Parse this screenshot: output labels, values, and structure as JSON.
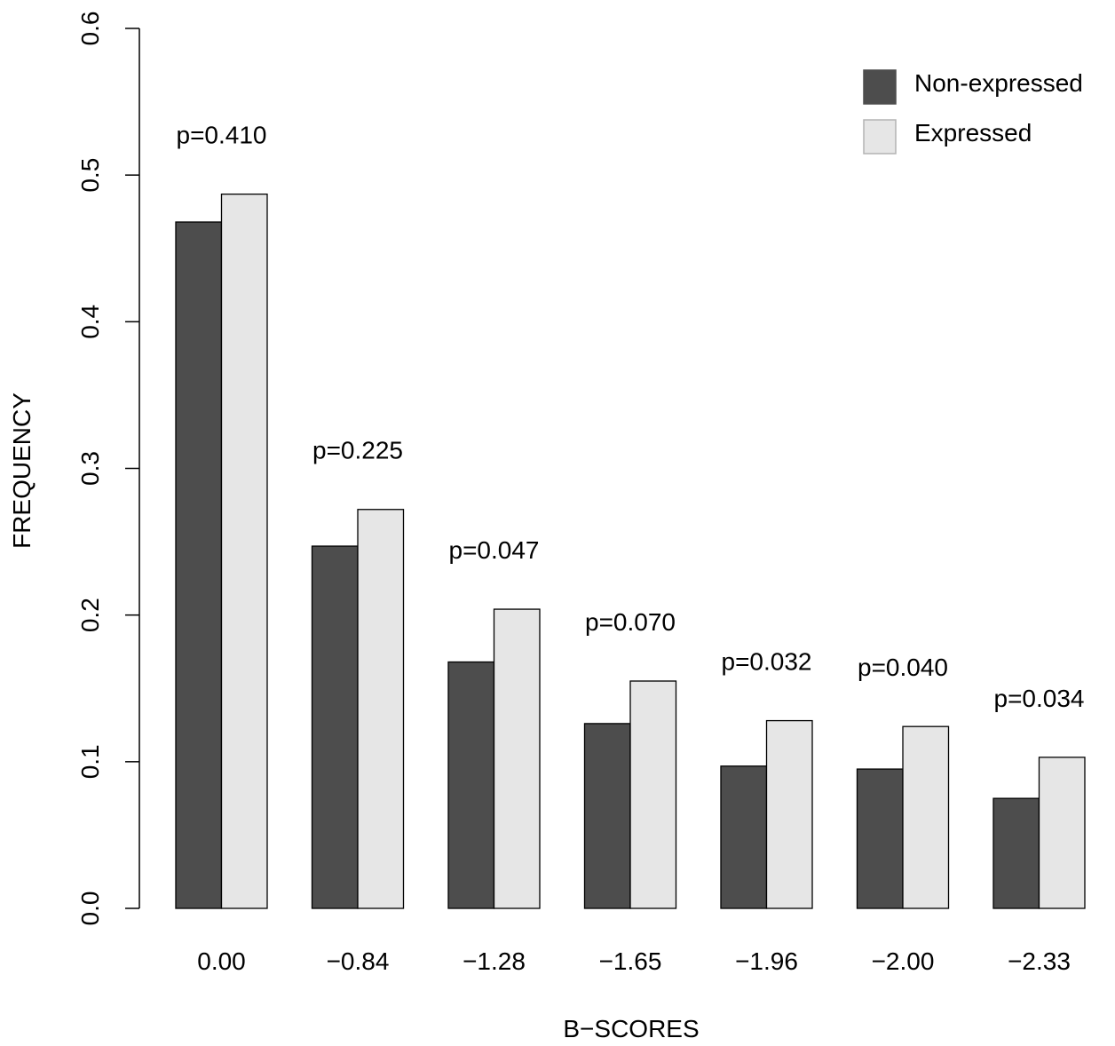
{
  "chart_data": {
    "type": "bar",
    "title": "",
    "xlabel": "B−SCORES",
    "ylabel": "FREQUENCY",
    "ylim": [
      0,
      0.6
    ],
    "yticks": [
      "0.0",
      "0.1",
      "0.2",
      "0.3",
      "0.4",
      "0.5",
      "0.6"
    ],
    "grid": false,
    "legend_position": "top-right",
    "categories": [
      "0.00",
      "−0.84",
      "−1.28",
      "−1.65",
      "−1.96",
      "−2.00",
      "−2.33"
    ],
    "series": [
      {
        "name": "Non-expressed",
        "color": "#4d4d4d",
        "values": [
          0.468,
          0.247,
          0.168,
          0.126,
          0.097,
          0.095,
          0.075
        ]
      },
      {
        "name": "Expressed",
        "color": "#e6e6e6",
        "values": [
          0.487,
          0.272,
          0.204,
          0.155,
          0.128,
          0.124,
          0.103
        ]
      }
    ],
    "annotations": [
      "p=0.410",
      "p=0.225",
      "p=0.047",
      "p=0.070",
      "p=0.032",
      "p=0.040",
      "p=0.034"
    ]
  }
}
